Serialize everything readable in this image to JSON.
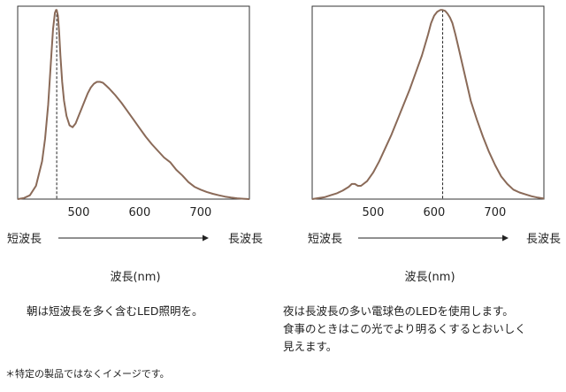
{
  "chart_data": [
    {
      "type": "line",
      "title": "",
      "xlabel": "波長(nm)",
      "ylabel": "",
      "xlim": [
        400,
        780
      ],
      "ylim": [
        0,
        1.02
      ],
      "x_ticks": [
        "500",
        "600",
        "700"
      ],
      "x_tick_values": [
        500,
        600,
        700
      ],
      "axis_start_label": "短波長",
      "axis_end_label": "長波長",
      "peak_marker_x": 464,
      "line_color": "#8a6a58",
      "series": [
        {
          "x": [
            400,
            410,
            420,
            430,
            440,
            445,
            450,
            455,
            458,
            461,
            463,
            464,
            466,
            468,
            470,
            473,
            476,
            480,
            485,
            490,
            495,
            500,
            505,
            510,
            515,
            520,
            525,
            530,
            535,
            540,
            545,
            550,
            560,
            570,
            580,
            590,
            600,
            610,
            620,
            630,
            640,
            650,
            660,
            670,
            680,
            690,
            700,
            710,
            720,
            730,
            740,
            750,
            760,
            770,
            780
          ],
          "y": [
            0,
            0.005,
            0.02,
            0.07,
            0.2,
            0.32,
            0.5,
            0.75,
            0.9,
            0.985,
            1.0,
            1.0,
            0.97,
            0.88,
            0.76,
            0.62,
            0.52,
            0.44,
            0.39,
            0.38,
            0.4,
            0.44,
            0.48,
            0.52,
            0.56,
            0.59,
            0.61,
            0.62,
            0.62,
            0.615,
            0.6,
            0.585,
            0.55,
            0.51,
            0.465,
            0.42,
            0.375,
            0.33,
            0.29,
            0.255,
            0.22,
            0.195,
            0.155,
            0.125,
            0.09,
            0.065,
            0.05,
            0.038,
            0.028,
            0.02,
            0.013,
            0.008,
            0.004,
            0.002,
            0.0
          ]
        }
      ]
    },
    {
      "type": "line",
      "title": "",
      "xlabel": "波長(nm)",
      "ylabel": "",
      "xlim": [
        400,
        780
      ],
      "ylim": [
        0,
        1.02
      ],
      "x_ticks": [
        "500",
        "600",
        "700"
      ],
      "x_tick_values": [
        500,
        600,
        700
      ],
      "axis_start_label": "短波長",
      "axis_end_label": "長波長",
      "peak_marker_x": 614,
      "line_color": "#8a6a58",
      "series": [
        {
          "x": [
            400,
            410,
            420,
            430,
            440,
            450,
            460,
            465,
            470,
            475,
            480,
            490,
            500,
            510,
            520,
            530,
            540,
            550,
            560,
            570,
            580,
            590,
            595,
            600,
            605,
            610,
            614,
            618,
            622,
            626,
            630,
            635,
            640,
            650,
            660,
            670,
            680,
            690,
            700,
            710,
            720,
            730,
            740,
            750,
            760,
            770,
            780
          ],
          "y": [
            0,
            0.005,
            0.01,
            0.02,
            0.03,
            0.045,
            0.065,
            0.08,
            0.08,
            0.07,
            0.07,
            0.095,
            0.14,
            0.2,
            0.27,
            0.34,
            0.42,
            0.5,
            0.58,
            0.67,
            0.76,
            0.87,
            0.93,
            0.97,
            0.99,
            1.0,
            1.0,
            0.995,
            0.98,
            0.96,
            0.93,
            0.87,
            0.8,
            0.66,
            0.52,
            0.42,
            0.33,
            0.25,
            0.18,
            0.12,
            0.08,
            0.05,
            0.035,
            0.025,
            0.015,
            0.008,
            0.003
          ]
        }
      ]
    }
  ],
  "captions": {
    "left": [
      "朝は短波長を多く含むLED照明を。"
    ],
    "right": [
      "夜は長波長の多い電球色のLEDを使用します。",
      "食事のときはこの光でより明るくするとおいしく",
      "見えます。"
    ]
  },
  "footnote": "＊特定の製品ではなくイメージです。"
}
